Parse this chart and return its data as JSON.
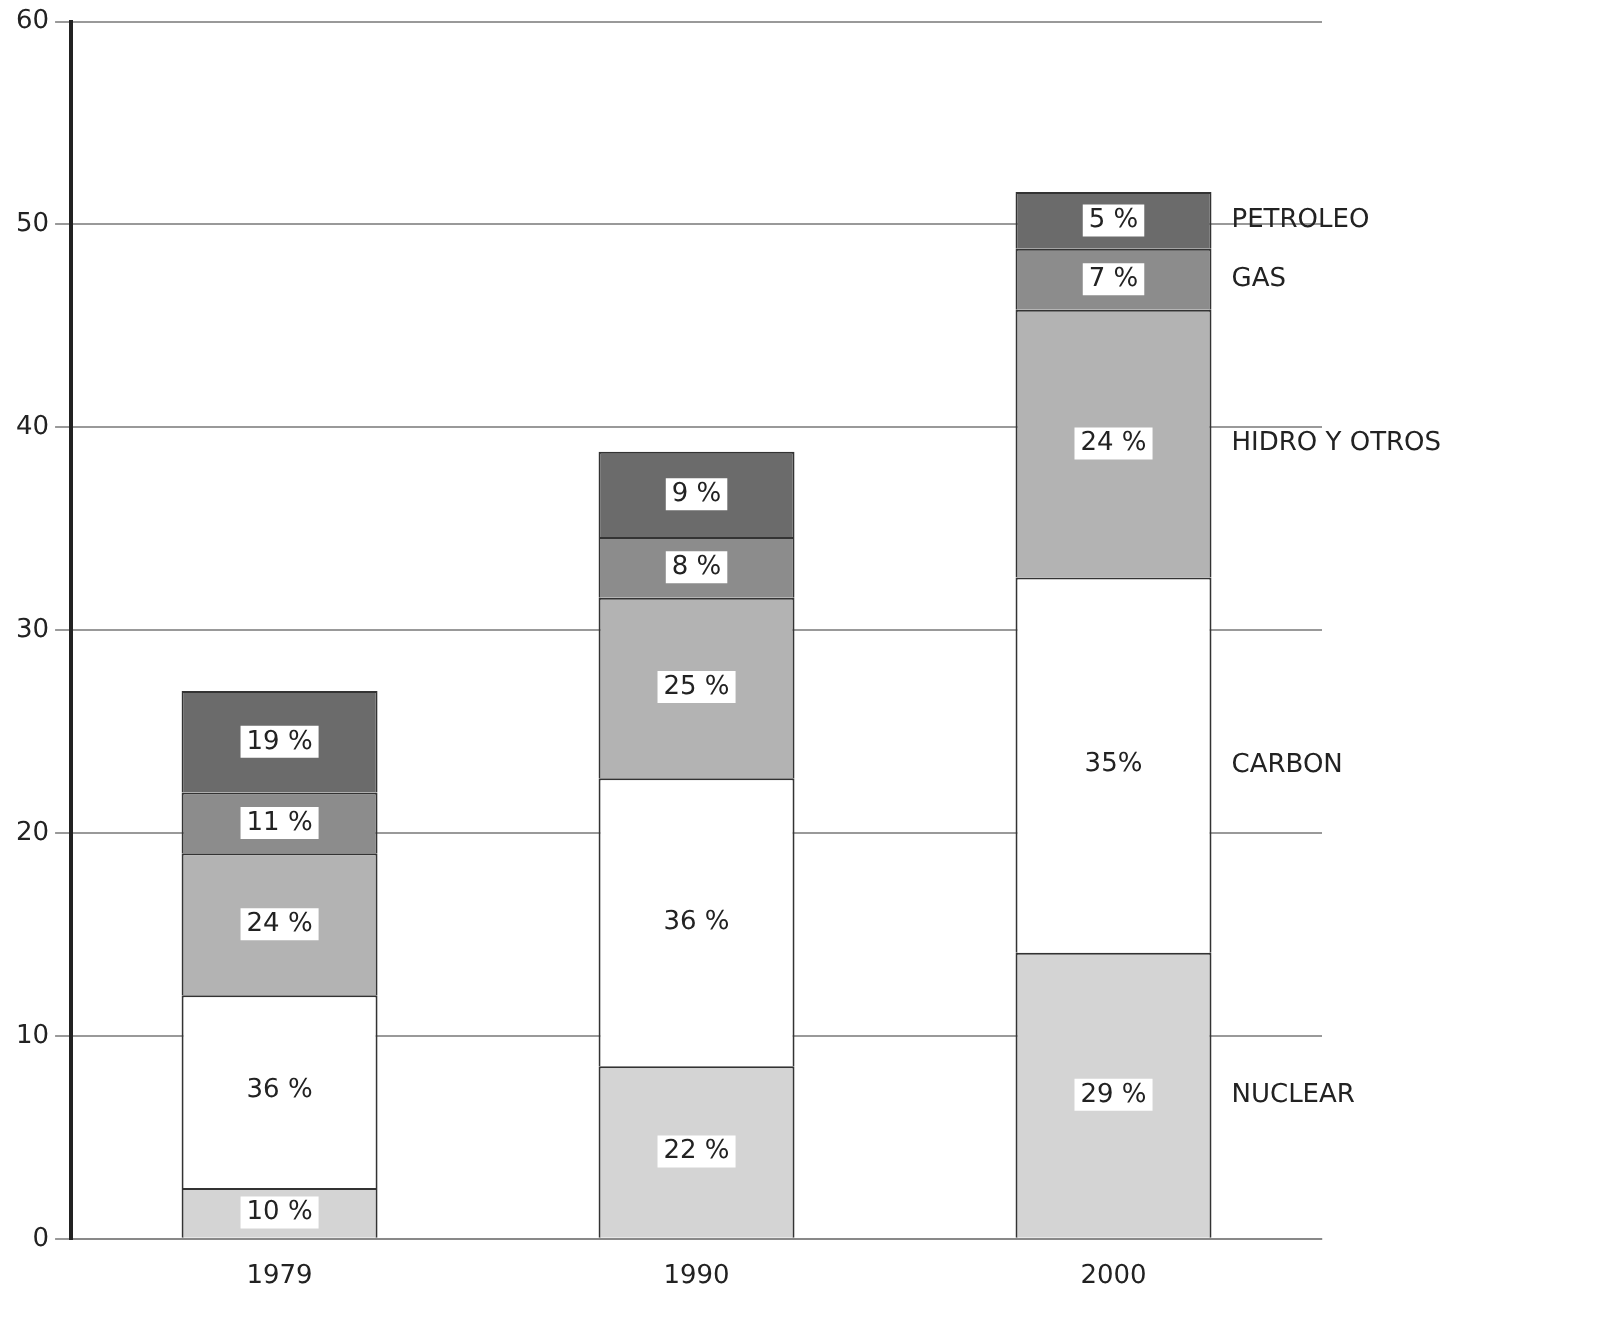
{
  "chart_data": {
    "type": "bar",
    "stacked": true,
    "categories": [
      "1979",
      "1990",
      "2000"
    ],
    "series": [
      {
        "name": "NUCLEAR",
        "color": "#d4d4d4",
        "values": [
          2.5,
          8.5,
          14.1
        ]
      },
      {
        "name": "CARBON",
        "color": "#ffffff",
        "values": [
          9.5,
          14.2,
          18.5
        ]
      },
      {
        "name": "HIDRO Y OTROS",
        "color": "#b3b3b3",
        "values": [
          7,
          8.9,
          13.2
        ]
      },
      {
        "name": "GAS",
        "color": "#8c8c8c",
        "values": [
          3,
          3,
          3
        ]
      },
      {
        "name": "PETROLEO",
        "color": "#6b6b6b",
        "values": [
          5,
          4.2,
          2.8
        ]
      }
    ],
    "annotations": [
      {
        "text": "10 %",
        "x": "1979",
        "y": 1.3
      },
      {
        "text": "36 %",
        "x": "1979",
        "y": 7.3
      },
      {
        "text": "24 %",
        "x": "1979",
        "y": 15.5
      },
      {
        "text": "11 %",
        "x": "1979",
        "y": 20.5
      },
      {
        "text": "19 %",
        "x": "1979",
        "y": 24.5
      },
      {
        "text": "22 %",
        "x": "1990",
        "y": 4.3
      },
      {
        "text": "36 %",
        "x": "1990",
        "y": 15.6
      },
      {
        "text": "25 %",
        "x": "1990",
        "y": 27.2
      },
      {
        "text": "8 %",
        "x": "1990",
        "y": 33.1
      },
      {
        "text": "9 %",
        "x": "1990",
        "y": 36.7
      },
      {
        "text": "29 %",
        "x": "2000",
        "y": 7.1
      },
      {
        "text": "35%",
        "x": "2000",
        "y": 23.4
      },
      {
        "text": "24 %",
        "x": "2000",
        "y": 39.2
      },
      {
        "text": "7 %",
        "x": "2000",
        "y": 47.3
      },
      {
        "text": "5 %",
        "x": "2000",
        "y": 50.2
      }
    ],
    "ylim": [
      0,
      60
    ],
    "yticks": [
      0,
      10,
      20,
      30,
      40,
      50,
      60
    ],
    "grid": "y",
    "legend": false
  }
}
